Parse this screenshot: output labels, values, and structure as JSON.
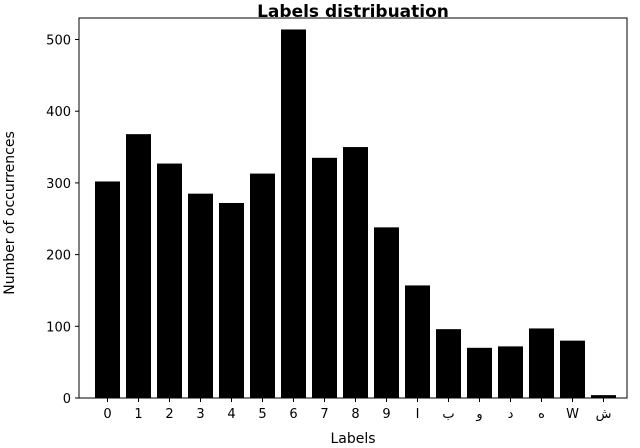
{
  "chart_data": {
    "type": "bar",
    "title": "Labels distribuation",
    "xlabel": "Labels",
    "ylabel": "Number of occurrences",
    "categories": [
      "0",
      "1",
      "2",
      "3",
      "4",
      "5",
      "6",
      "7",
      "8",
      "9",
      "I",
      "ب",
      "و",
      "د",
      "ه",
      "W",
      "ش"
    ],
    "values": [
      302,
      368,
      327,
      285,
      272,
      313,
      514,
      335,
      350,
      238,
      157,
      96,
      70,
      72,
      97,
      80,
      4
    ],
    "ylim": [
      0,
      530
    ],
    "yticks": [
      0,
      100,
      200,
      300,
      400,
      500
    ],
    "bar_color": "#000000",
    "grid": false,
    "legend": false
  }
}
